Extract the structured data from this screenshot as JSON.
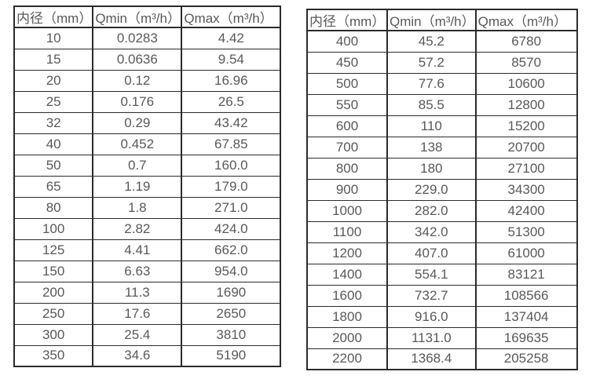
{
  "colors": {
    "background": "#ffffff",
    "border": "#2b2b2b",
    "text": "#595959"
  },
  "left_table": {
    "headers": [
      "内径（mm）",
      "Qmin（m³/h）",
      "Qmax（m³/h）"
    ],
    "rows": [
      [
        "10",
        "0.0283",
        "4.42"
      ],
      [
        "15",
        "0.0636",
        "9.54"
      ],
      [
        "20",
        "0.12",
        "16.96"
      ],
      [
        "25",
        "0.176",
        "26.5"
      ],
      [
        "32",
        "0.29",
        "43.42"
      ],
      [
        "40",
        "0.452",
        "67.85"
      ],
      [
        "50",
        "0.7",
        "160.0"
      ],
      [
        "65",
        "1.19",
        "179.0"
      ],
      [
        "80",
        "1.8",
        "271.0"
      ],
      [
        "100",
        "2.82",
        "424.0"
      ],
      [
        "125",
        "4.41",
        "662.0"
      ],
      [
        "150",
        "6.63",
        "954.0"
      ],
      [
        "200",
        "11.3",
        "1690"
      ],
      [
        "250",
        "17.6",
        "2650"
      ],
      [
        "300",
        "25.4",
        "3810"
      ],
      [
        "350",
        "34.6",
        "5190"
      ]
    ]
  },
  "right_table": {
    "headers": [
      "内径（mm）",
      "Qmin（m³/h）",
      "Qmax（m³/h）"
    ],
    "rows": [
      [
        "400",
        "45.2",
        "6780"
      ],
      [
        "450",
        "57.2",
        "8570"
      ],
      [
        "500",
        "77.6",
        "10600"
      ],
      [
        "550",
        "85.5",
        "12800"
      ],
      [
        "600",
        "110",
        "15200"
      ],
      [
        "700",
        "138",
        "20700"
      ],
      [
        "800",
        "180",
        "27100"
      ],
      [
        "900",
        "229.0",
        "34300"
      ],
      [
        "1000",
        "282.0",
        "42400"
      ],
      [
        "1100",
        "342.0",
        "51300"
      ],
      [
        "1200",
        "407.0",
        "61000"
      ],
      [
        "1400",
        "554.1",
        "83121"
      ],
      [
        "1600",
        "732.7",
        "108566"
      ],
      [
        "1800",
        "916.0",
        "137404"
      ],
      [
        "2000",
        "1131.0",
        "169635"
      ],
      [
        "2200",
        "1368.4",
        "205258"
      ]
    ]
  }
}
